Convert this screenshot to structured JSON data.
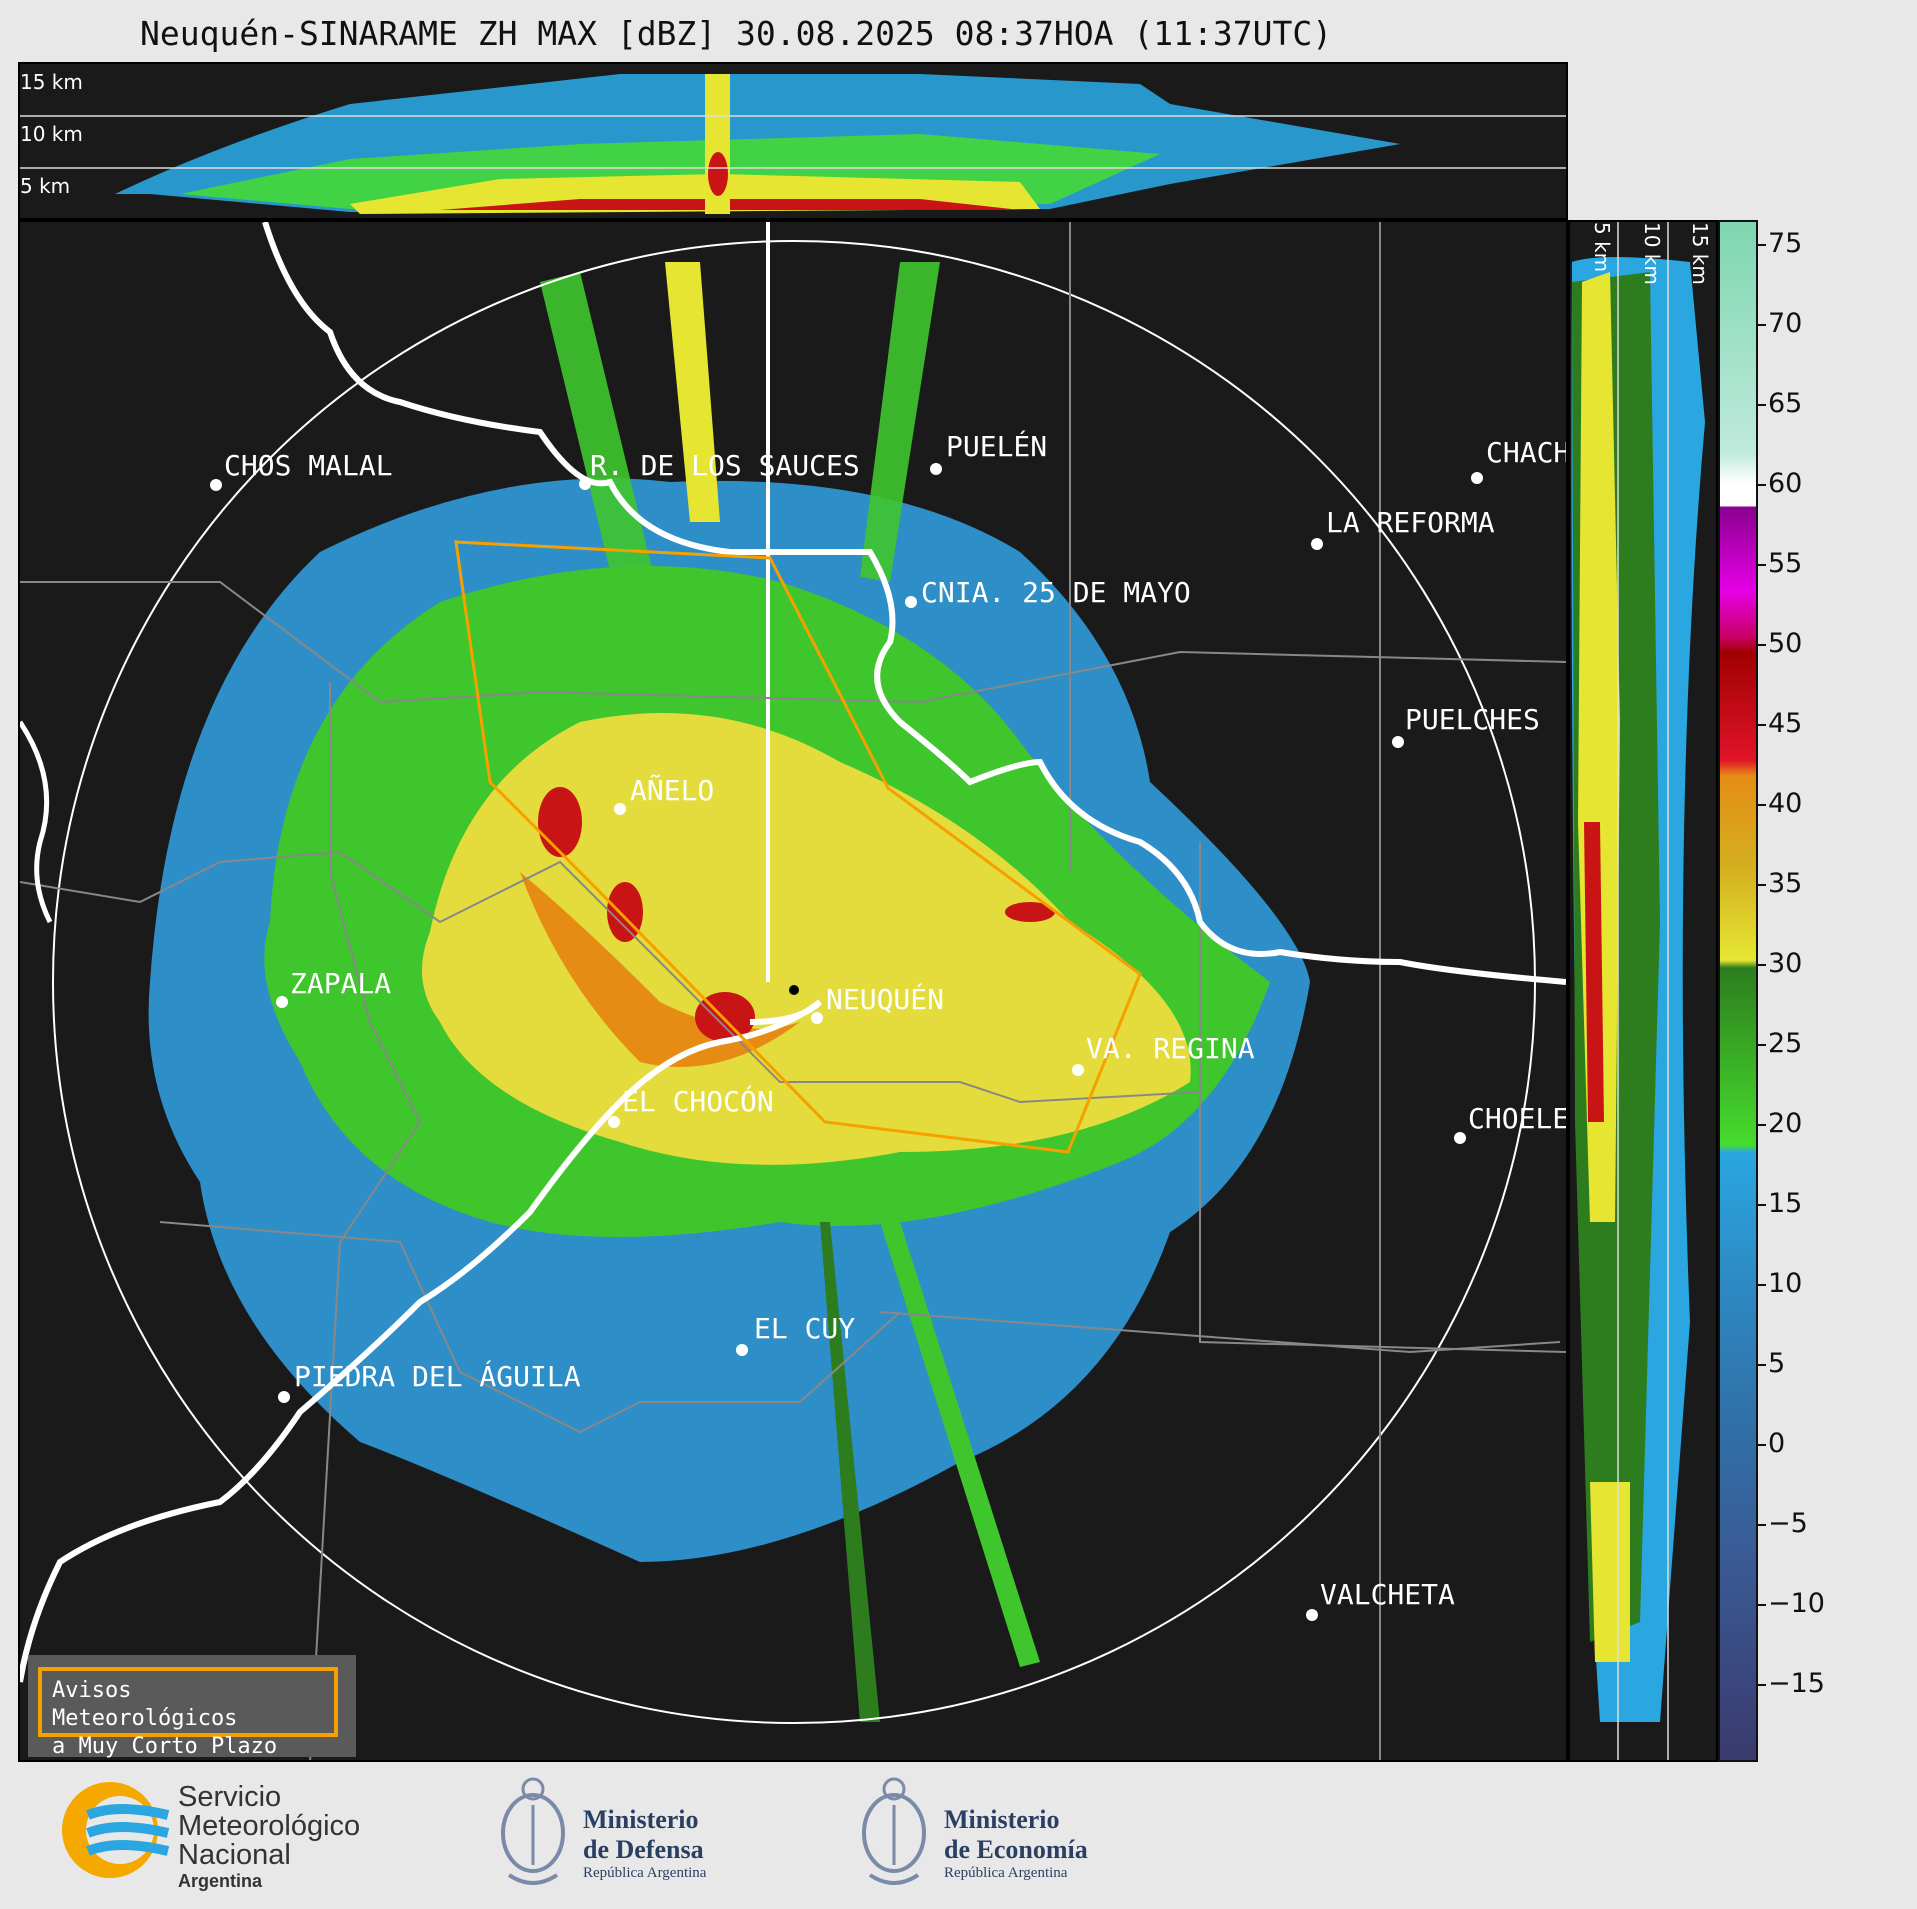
{
  "title": "Neuquén-SINARAME ZH MAX [dBZ] 30.08.2025 08:37HOA (11:37UTC)",
  "top_panel": {
    "height_labels": [
      "15 km",
      "10 km",
      "5 km"
    ]
  },
  "side_panel": {
    "height_labels": [
      "5 km",
      "10 km",
      "15 km"
    ]
  },
  "colorbar": {
    "ticks": [
      "75",
      "70",
      "65",
      "60",
      "55",
      "50",
      "45",
      "40",
      "35",
      "30",
      "25",
      "20",
      "15",
      "10",
      "5",
      "0",
      "−5",
      "−10",
      "−15"
    ],
    "colors": {
      "ge60": "#ffffff",
      "55": "#b400b4",
      "50": "#c80064",
      "45": "#c81414",
      "40": "#e68c14",
      "35": "#e6e632",
      "30": "#2d7d1e",
      "20": "#46dc2d",
      "15": "#2aa6e0",
      "5": "#2e76b4",
      "0": "#3a5a94",
      "-15": "#3a3a6e"
    }
  },
  "cities": [
    {
      "name": "CHOS MALAL"
    },
    {
      "name": "R. DE LOS SAUCES"
    },
    {
      "name": "PUELÉN"
    },
    {
      "name": "CHACH"
    },
    {
      "name": "LA REFORMA"
    },
    {
      "name": "CNIA. 25 DE MAYO"
    },
    {
      "name": "PUELCHES"
    },
    {
      "name": "AÑELO"
    },
    {
      "name": "ZAPALA"
    },
    {
      "name": "NEUQUÉN"
    },
    {
      "name": "VA. REGINA"
    },
    {
      "name": "EL CHOCÓN"
    },
    {
      "name": "CHOELE"
    },
    {
      "name": "EL CUY"
    },
    {
      "name": "PIEDRA DEL ÁGUILA"
    },
    {
      "name": "VALCHETA"
    }
  ],
  "warning_box": {
    "line1": "Avisos Meteorológicos",
    "line2": "a Muy Corto Plazo"
  },
  "logos": {
    "smn": {
      "line1": "Servicio",
      "line2": "Meteorológico",
      "line3": "Nacional",
      "line4": "Argentina"
    },
    "defensa": {
      "line1": "Ministerio",
      "line2": "de Defensa",
      "line3": "República Argentina"
    },
    "economia": {
      "line1": "Ministerio",
      "line2": "de Economía",
      "line3": "República Argentina"
    }
  }
}
